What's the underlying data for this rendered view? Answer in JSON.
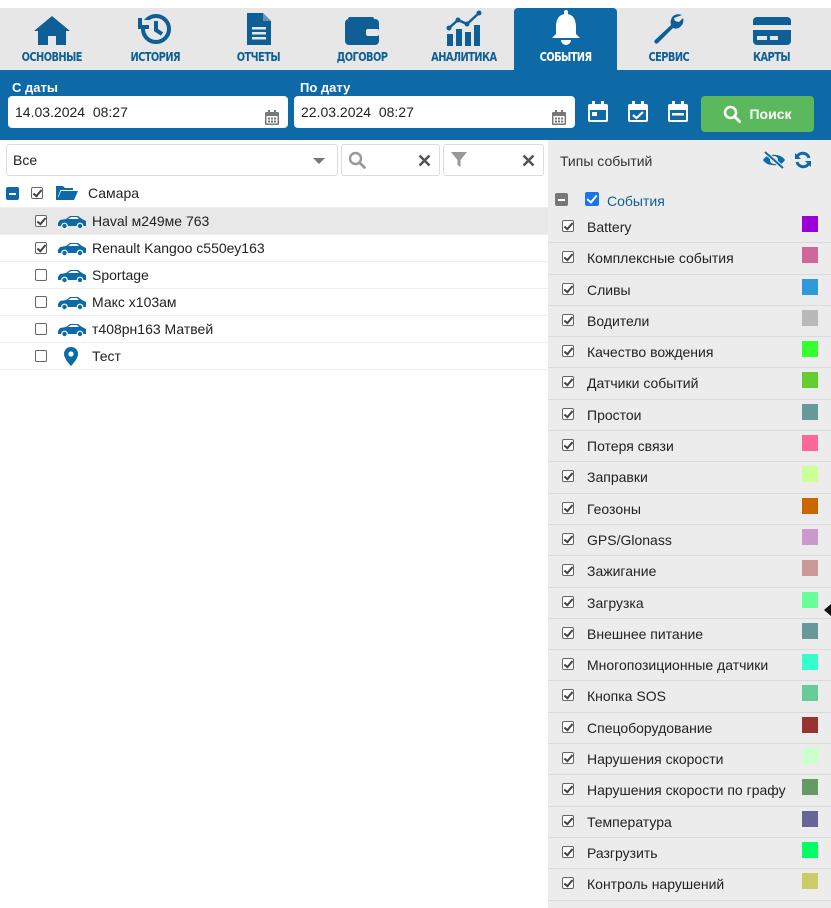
{
  "nav": {
    "tabs": [
      {
        "label": "ОСНОВНЫЕ",
        "icon": "home-icon",
        "active": false
      },
      {
        "label": "ИСТОРИЯ",
        "icon": "history-icon",
        "active": false
      },
      {
        "label": "ОТЧЕТЫ",
        "icon": "document-icon",
        "active": false
      },
      {
        "label": "ДОГОВОР",
        "icon": "wallet-icon",
        "active": false
      },
      {
        "label": "АНАЛИТИКА",
        "icon": "analytics-icon",
        "active": false
      },
      {
        "label": "СОБЫТИЯ",
        "icon": "bell-icon",
        "active": true
      },
      {
        "label": "СЕРВИС",
        "icon": "wrench-icon",
        "active": false
      },
      {
        "label": "КАРТЫ",
        "icon": "card-icon",
        "active": false
      }
    ]
  },
  "dates": {
    "from_label": "С даты",
    "from_value": "14.03.2024  08:27",
    "to_label": "По дату",
    "to_value": "22.03.2024  08:27",
    "search_label": "Поиск"
  },
  "filter": {
    "select_value": "Все"
  },
  "tree": {
    "group": "Самара",
    "items": [
      {
        "label": "Haval м249ме 763",
        "checked": true,
        "selected": true,
        "icon": "car-icon"
      },
      {
        "label": "Renault Kangoo с550еу163",
        "checked": true,
        "selected": false,
        "icon": "car-icon"
      },
      {
        "label": "Sportage",
        "checked": false,
        "selected": false,
        "icon": "car-icon"
      },
      {
        "label": "Макс х103ам",
        "checked": false,
        "selected": false,
        "icon": "car-icon"
      },
      {
        "label": "т408рн163 Матвей",
        "checked": false,
        "selected": false,
        "icon": "car-icon"
      },
      {
        "label": "Тест",
        "checked": false,
        "selected": false,
        "icon": "map-pin-icon"
      }
    ]
  },
  "events_panel": {
    "title": "Типы событий",
    "root_label": "События",
    "items": [
      {
        "label": "Battery",
        "color": "#9b00d9"
      },
      {
        "label": "Комплексные события",
        "color": "#d0679a"
      },
      {
        "label": "Сливы",
        "color": "#2f9ad9"
      },
      {
        "label": "Водители",
        "color": "#b9b9b9"
      },
      {
        "label": "Качество вождения",
        "color": "#33ff33"
      },
      {
        "label": "Датчики событий",
        "color": "#66cc33"
      },
      {
        "label": "Простои",
        "color": "#669999"
      },
      {
        "label": "Потеря связи",
        "color": "#ff6699"
      },
      {
        "label": "Заправки",
        "color": "#ccff99"
      },
      {
        "label": "Геозоны",
        "color": "#cc6600"
      },
      {
        "label": "GPS/Glonass",
        "color": "#cc99cc"
      },
      {
        "label": "Зажигание",
        "color": "#cc9999"
      },
      {
        "label": "Загрузка",
        "color": "#66ff99"
      },
      {
        "label": "Внешнее питание",
        "color": "#669999"
      },
      {
        "label": "Многопозиционные датчики",
        "color": "#33ffcc"
      },
      {
        "label": "Кнопка SOS",
        "color": "#66cc99"
      },
      {
        "label": "Спецоборудование",
        "color": "#993333"
      },
      {
        "label": "Нарушения скорости",
        "color": "#ccffcc"
      },
      {
        "label": "Нарушения скорости по графу",
        "color": "#669966"
      },
      {
        "label": "Температура",
        "color": "#666699"
      },
      {
        "label": "Разгрузить",
        "color": "#00ff66"
      },
      {
        "label": "Контроль нарушений",
        "color": "#cccc66"
      }
    ]
  }
}
